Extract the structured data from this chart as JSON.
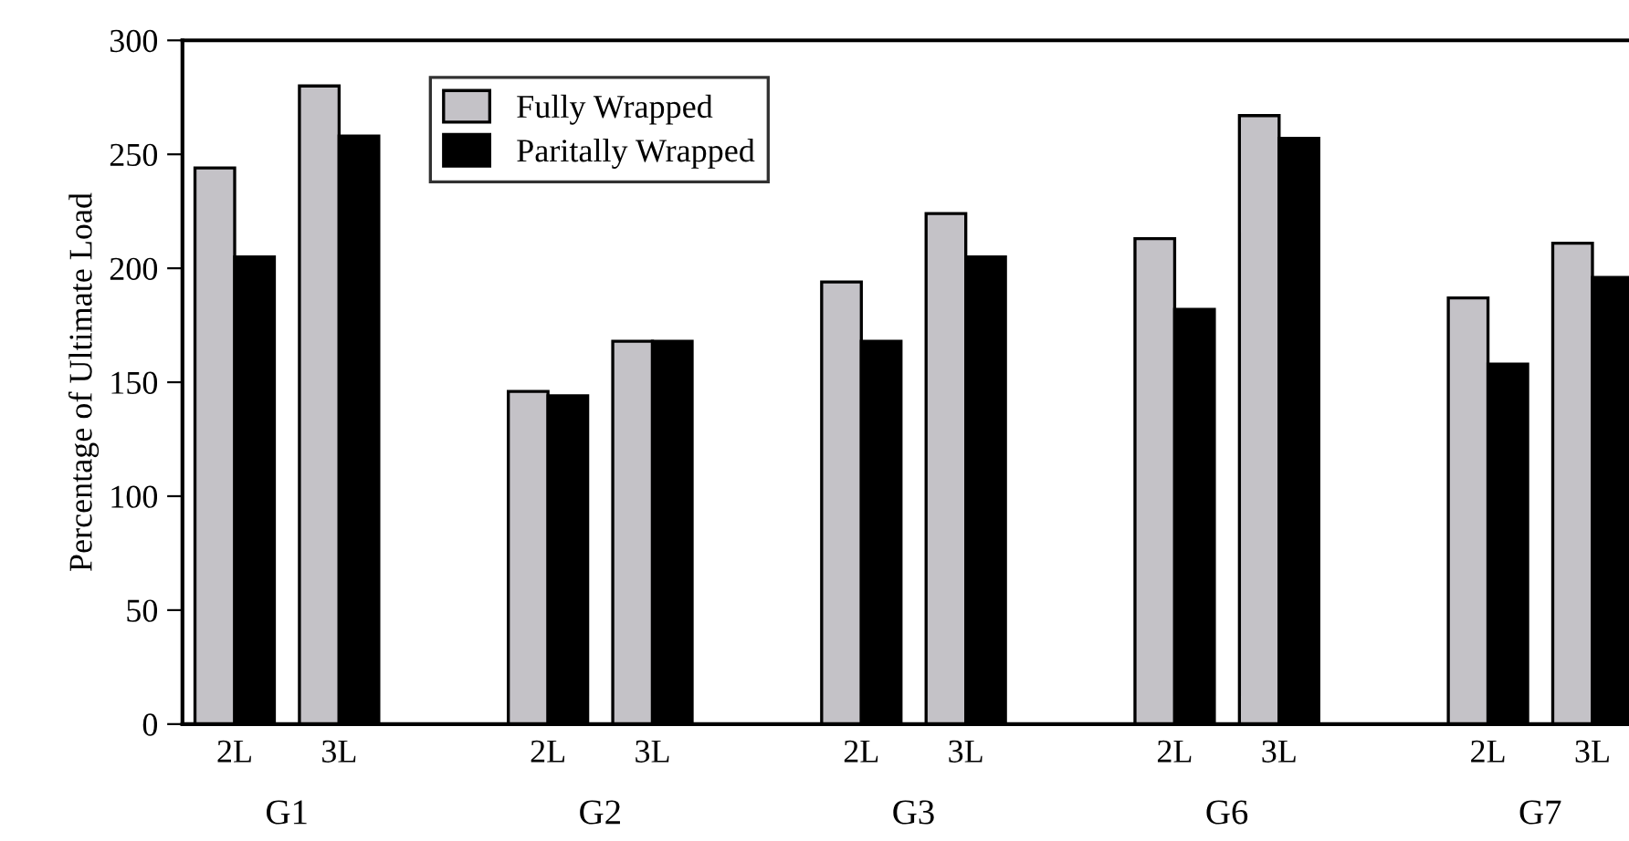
{
  "chart_data": {
    "type": "bar",
    "ylabel": "Percentage of Ultimate Load",
    "categories": [
      "2L",
      "3L",
      "2L",
      "3L",
      "2L",
      "3L",
      "2L",
      "3L",
      "2L",
      "3L"
    ],
    "annotations": [
      "G1",
      "G2",
      "G3",
      "G6",
      "G7"
    ],
    "series": [
      {
        "name": "Fully Wrapped",
        "color": "#c4c2c7",
        "values": [
          244,
          280,
          146,
          168,
          194,
          224,
          213,
          267,
          187,
          211
        ]
      },
      {
        "name": "Paritally Wrapped",
        "color": "#000000",
        "values": [
          205,
          258,
          144,
          168,
          168,
          205,
          182,
          257,
          158,
          196
        ]
      }
    ],
    "ylim": [
      0,
      300
    ],
    "yticks": [
      0,
      50,
      100,
      150,
      200,
      250,
      300
    ],
    "grid": false,
    "legend": "top left"
  }
}
